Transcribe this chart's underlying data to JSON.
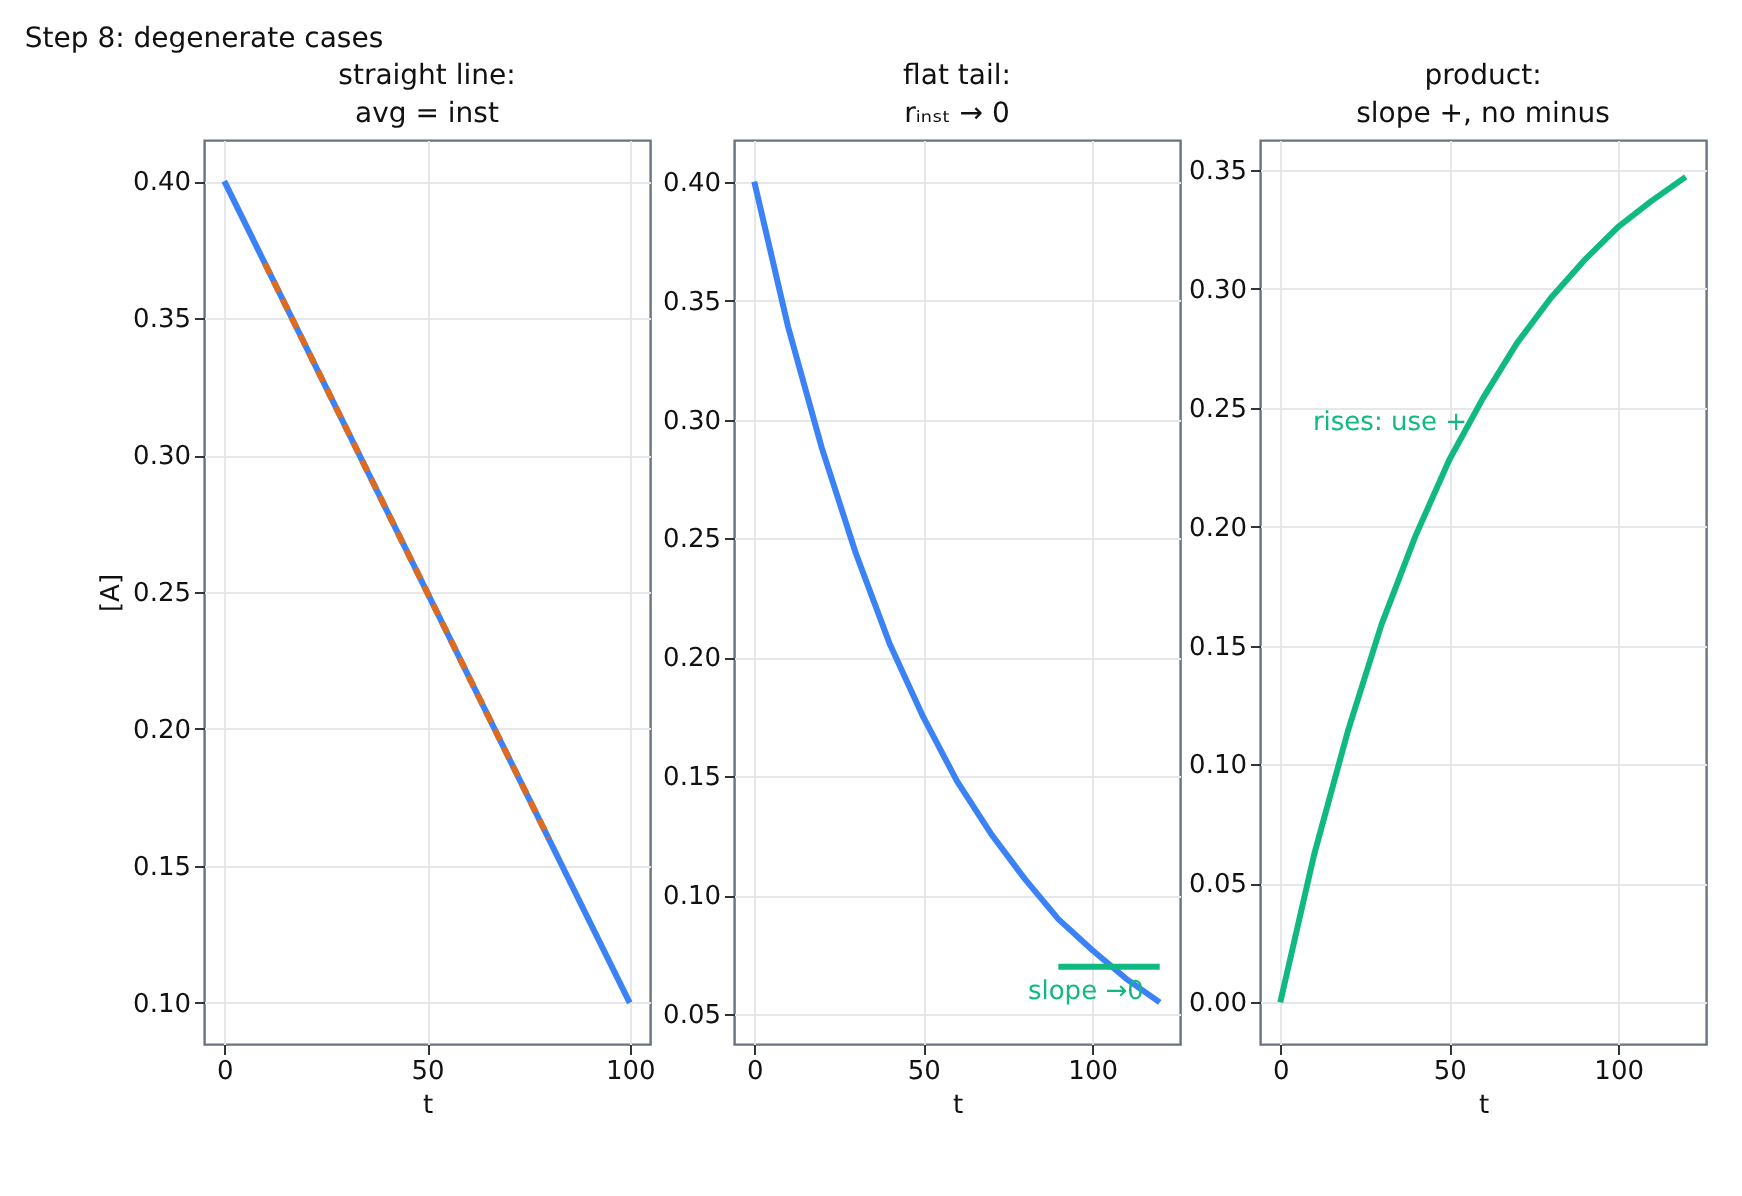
{
  "chart_data": [
    {
      "type": "line",
      "title": "straight line:\navg = inst",
      "xlabel": "t",
      "ylabel": "[A]",
      "xlim": [
        -5,
        105
      ],
      "ylim": [
        0.085,
        0.415
      ],
      "xticks": [
        0,
        50,
        100
      ],
      "yticks": [
        {
          "value": 0.1,
          "label": "0.10"
        },
        0.15,
        {
          "value": 0.2,
          "label": "0.20"
        },
        0.25,
        {
          "value": 0.3,
          "label": "0.30"
        },
        0.35,
        {
          "value": 0.4,
          "label": "0.40"
        }
      ],
      "grid": true,
      "annotations": [
        "Step 8: degenerate cases"
      ],
      "series": [
        {
          "color": "#3b82f6",
          "x": [
            0,
            100
          ],
          "values": [
            0.4,
            0.1
          ]
        },
        {
          "color": "#dd6b20",
          "x": [
            10,
            80
          ],
          "values": [
            0.37,
            0.16
          ],
          "line_style": "dashed"
        }
      ]
    },
    {
      "type": "line",
      "title": "flat tail:\nrᵢₙₛₜ → 0",
      "xlabel": "t",
      "xlim": [
        -6,
        126
      ],
      "ylim": [
        0.0375,
        0.4175
      ],
      "xticks": [
        0,
        50,
        100
      ],
      "yticks": [
        0.05,
        {
          "value": 0.1,
          "label": "0.10"
        },
        0.15,
        {
          "value": 0.2,
          "label": "0.20"
        },
        0.25,
        {
          "value": 0.3,
          "label": "0.30"
        },
        0.35,
        {
          "value": 0.4,
          "label": "0.40"
        }
      ],
      "grid": true,
      "series": [
        {
          "color": "#3b82f6",
          "x": [
            0,
            10,
            20,
            30,
            40,
            50,
            60,
            70,
            80,
            90,
            100,
            110,
            120
          ],
          "values": [
            0.4,
            0.339,
            0.288,
            0.244,
            0.206,
            0.175,
            0.148,
            0.126,
            0.107,
            0.09,
            0.077,
            0.065,
            0.055
          ]
        },
        {
          "name": "slope →0",
          "color": "#10b981",
          "x": [
            90,
            120
          ],
          "values": [
            0.07,
            0.07
          ]
        }
      ]
    },
    {
      "type": "line",
      "title": "product:\nslope +, no minus",
      "xlabel": "t",
      "xlim": [
        -6,
        126
      ],
      "ylim": [
        -0.0175,
        0.3625
      ],
      "xticks": [
        0,
        50,
        100
      ],
      "yticks": [
        {
          "value": 0,
          "label": "0.00"
        },
        0.05,
        {
          "value": 0.1,
          "label": "0.10"
        },
        0.15,
        {
          "value": 0.2,
          "label": "0.20"
        },
        0.25,
        {
          "value": 0.3,
          "label": "0.30"
        },
        0.35
      ],
      "grid": true,
      "series": [
        {
          "name": "rises: use +",
          "color": "#10b981",
          "x": [
            0,
            10,
            20,
            30,
            40,
            50,
            60,
            70,
            80,
            90,
            100,
            110,
            120
          ],
          "values": [
            0,
            0.062,
            0.114,
            0.159,
            0.196,
            0.228,
            0.254,
            0.277,
            0.296,
            0.312,
            0.326,
            0.337,
            0.347
          ]
        }
      ]
    }
  ]
}
